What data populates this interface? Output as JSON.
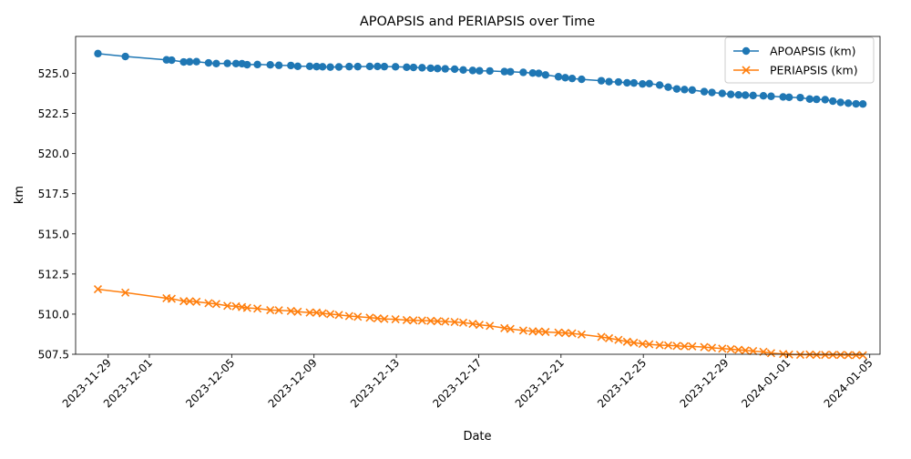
{
  "chart_data": {
    "type": "line",
    "title": "APOAPSIS and PERIAPSIS over Time",
    "xlabel": "Date",
    "ylabel": "km",
    "xlim": [
      "2023-11-27T10:00",
      "2024-01-05T12:00"
    ],
    "ylim": [
      507.5,
      527.3
    ],
    "x_ticks": [
      "2023-11-29",
      "2023-12-01",
      "2023-12-05",
      "2023-12-09",
      "2023-12-13",
      "2023-12-17",
      "2023-12-21",
      "2023-12-25",
      "2023-12-29",
      "2024-01-01",
      "2024-01-05"
    ],
    "y_ticks": [
      "507.5",
      "510.0",
      "512.5",
      "515.0",
      "517.5",
      "520.0",
      "522.5",
      "525.0"
    ],
    "grid": false,
    "legend_position": "top-right",
    "x": [
      "2023-11-28T12:00",
      "2023-11-29T20:00",
      "2023-12-01T20:00",
      "2023-12-02T02:00",
      "2023-12-02T16:00",
      "2023-12-02T23:00",
      "2023-12-03T07:00",
      "2023-12-03T21:00",
      "2023-12-04T06:00",
      "2023-12-04T19:00",
      "2023-12-05T05:00",
      "2023-12-05T12:00",
      "2023-12-05T18:00",
      "2023-12-06T06:00",
      "2023-12-06T21:00",
      "2023-12-07T07:00",
      "2023-12-07T21:00",
      "2023-12-08T05:00",
      "2023-12-08T19:00",
      "2023-12-09T03:00",
      "2023-12-09T10:00",
      "2023-12-09T19:00",
      "2023-12-10T05:00",
      "2023-12-10T17:00",
      "2023-12-11T03:00",
      "2023-12-11T17:00",
      "2023-12-12T02:00",
      "2023-12-12T10:00",
      "2023-12-12T23:00",
      "2023-12-13T12:00",
      "2023-12-13T20:00",
      "2023-12-14T06:00",
      "2023-12-14T16:00",
      "2023-12-15T00:00",
      "2023-12-15T09:00",
      "2023-12-15T20:00",
      "2023-12-16T06:00",
      "2023-12-16T17:00",
      "2023-12-17T01:00",
      "2023-12-17T13:00",
      "2023-12-18T06:00",
      "2023-12-18T13:00",
      "2023-12-19T04:00",
      "2023-12-19T15:00",
      "2023-12-19T22:00",
      "2023-12-20T06:00",
      "2023-12-20T21:00",
      "2023-12-21T05:00",
      "2023-12-21T13:00",
      "2023-12-22T00:00",
      "2023-12-22T23:00",
      "2023-12-23T08:00",
      "2023-12-23T19:00",
      "2023-12-24T05:00",
      "2023-12-24T13:00",
      "2023-12-24T23:00",
      "2023-12-25T07:00",
      "2023-12-25T19:00",
      "2023-12-26T05:00",
      "2023-12-26T15:00",
      "2023-12-27T00:00",
      "2023-12-27T09:00",
      "2023-12-27T23:00",
      "2023-12-28T08:00",
      "2023-12-28T20:00",
      "2023-12-29T06:00",
      "2023-12-29T15:00",
      "2023-12-29T23:00",
      "2023-12-30T08:00",
      "2023-12-30T20:00",
      "2023-12-31T05:00",
      "2023-12-31T19:00",
      "2024-01-01T02:00",
      "2024-01-01T15:00",
      "2024-01-02T02:00",
      "2024-01-02T10:00",
      "2024-01-02T20:00",
      "2024-01-03T05:00",
      "2024-01-03T14:00",
      "2024-01-03T23:00",
      "2024-01-04T08:00",
      "2024-01-04T16:00"
    ],
    "series": [
      {
        "name": "APOAPSIS (km)",
        "color": "#1f77b4",
        "marker": "circle",
        "values": [
          526.23,
          526.05,
          525.84,
          525.82,
          525.71,
          525.72,
          525.73,
          525.65,
          525.61,
          525.62,
          525.61,
          525.6,
          525.54,
          525.55,
          525.53,
          525.5,
          525.49,
          525.44,
          525.44,
          525.42,
          525.41,
          525.39,
          525.4,
          525.42,
          525.42,
          525.43,
          525.43,
          525.42,
          525.41,
          525.38,
          525.37,
          525.35,
          525.32,
          525.3,
          525.28,
          525.26,
          525.21,
          525.18,
          525.16,
          525.15,
          525.11,
          525.1,
          525.06,
          525.02,
          525.0,
          524.9,
          524.79,
          524.73,
          524.68,
          524.63,
          524.54,
          524.48,
          524.46,
          524.41,
          524.4,
          524.34,
          524.36,
          524.27,
          524.14,
          524.03,
          523.99,
          523.96,
          523.86,
          523.81,
          523.75,
          523.69,
          523.66,
          523.64,
          523.62,
          523.6,
          523.57,
          523.53,
          523.51,
          523.49,
          523.4,
          523.38,
          523.36,
          523.27,
          523.19,
          523.14,
          523.1,
          523.09
        ]
      },
      {
        "name": "PERIAPSIS (km)",
        "color": "#ff7f0e",
        "marker": "x",
        "values": [
          511.55,
          511.34,
          510.99,
          510.96,
          510.81,
          510.8,
          510.77,
          510.68,
          510.63,
          510.52,
          510.49,
          510.44,
          510.39,
          510.35,
          510.25,
          510.24,
          510.2,
          510.15,
          510.1,
          510.1,
          510.05,
          510.0,
          509.95,
          509.88,
          509.84,
          509.78,
          509.74,
          509.7,
          509.68,
          509.63,
          509.61,
          509.6,
          509.58,
          509.56,
          509.54,
          509.51,
          509.47,
          509.4,
          509.33,
          509.27,
          509.13,
          509.08,
          508.98,
          508.93,
          508.92,
          508.89,
          508.85,
          508.83,
          508.8,
          508.73,
          508.58,
          508.5,
          508.4,
          508.28,
          508.22,
          508.15,
          508.12,
          508.07,
          508.05,
          508.02,
          508.0,
          507.99,
          507.95,
          507.9,
          507.85,
          507.82,
          507.78,
          507.74,
          507.7,
          507.65,
          507.57,
          507.52,
          507.48,
          507.47,
          507.48,
          507.46,
          507.46,
          507.46,
          507.46,
          507.45,
          507.45,
          507.44
        ]
      }
    ]
  }
}
